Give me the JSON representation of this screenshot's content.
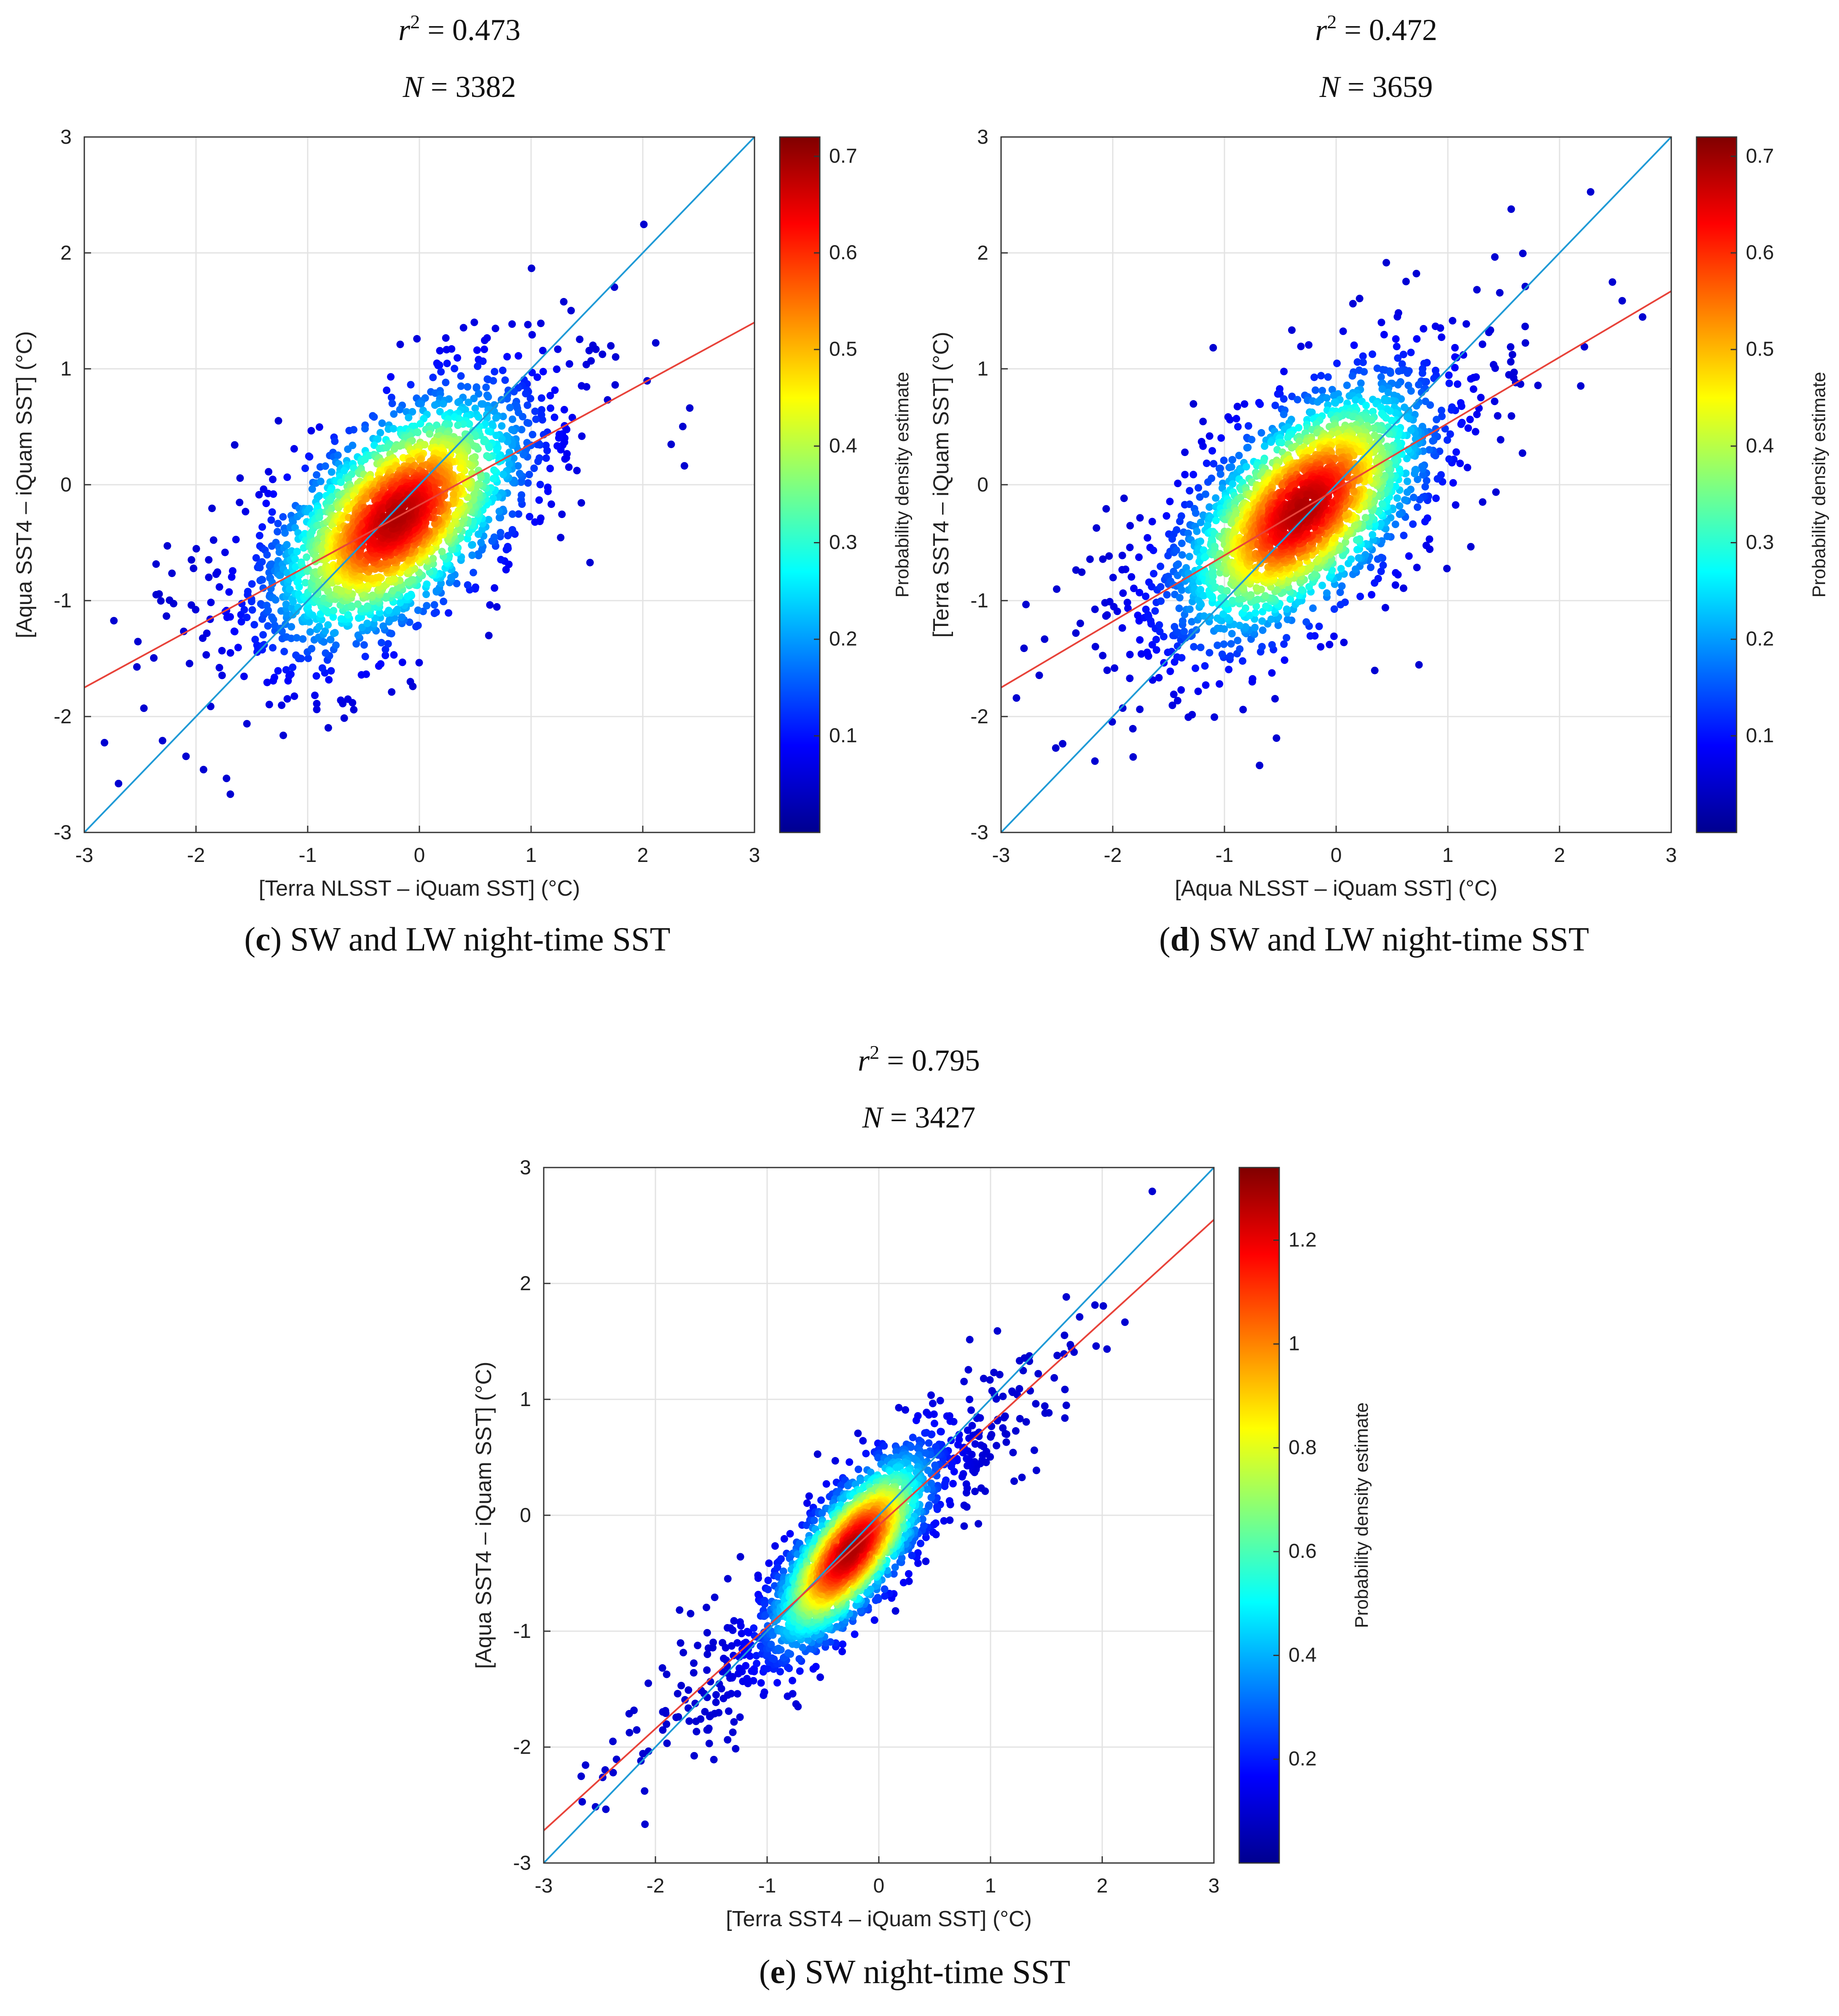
{
  "colors": {
    "reference_line": "#1f9ad6",
    "regression_line": "#e8433a",
    "grid": "#e3e3e3",
    "axis": "#333333"
  },
  "chart_data": [
    {
      "id": "c",
      "type": "scatter",
      "density_colored": true,
      "stats": {
        "r2_label": "r",
        "r2_value": "0.473",
        "n_label": "N",
        "n_value": "3382"
      },
      "caption": {
        "letter": "c",
        "text": " SW and LW night-time SST"
      },
      "xlabel": "[Terra NLSST – iQuam SST] (°C)",
      "ylabel": "[Aqua SST4 – iQuam SST] (°C)",
      "xlim": [
        -3,
        3
      ],
      "ylim": [
        -3,
        3
      ],
      "xticks": [
        "-3",
        "-2",
        "-1",
        "0",
        "1",
        "2",
        "3"
      ],
      "yticks": [
        "-3",
        "-2",
        "-1",
        "0",
        "1",
        "2",
        "3"
      ],
      "grid": true,
      "reference_line": {
        "x": [
          -3,
          3
        ],
        "y": [
          -3,
          3
        ]
      },
      "regression_line": {
        "x": [
          -3,
          3
        ],
        "y": [
          -1.75,
          1.4
        ]
      },
      "colorbar": {
        "label": "Probability density estimate",
        "min": 0,
        "max": 0.72,
        "ticks": [
          "0.1",
          "0.2",
          "0.3",
          "0.4",
          "0.5",
          "0.6",
          "0.7"
        ]
      },
      "cluster": {
        "center_x": -0.2,
        "center_y": -0.2,
        "peak_density": 0.7
      }
    },
    {
      "id": "d",
      "type": "scatter",
      "density_colored": true,
      "stats": {
        "r2_label": "r",
        "r2_value": "0.472",
        "n_label": "N",
        "n_value": "3659"
      },
      "caption": {
        "letter": "d",
        "text": " SW and LW night-time SST"
      },
      "xlabel": "[Aqua NLSST – iQuam SST] (°C)",
      "ylabel": "[Terra SST4 – iQuam SST] (°C)",
      "xlim": [
        -3,
        3
      ],
      "ylim": [
        -3,
        3
      ],
      "xticks": [
        "-3",
        "-2",
        "-1",
        "0",
        "1",
        "2",
        "3"
      ],
      "yticks": [
        "-3",
        "-2",
        "-1",
        "0",
        "1",
        "2",
        "3"
      ],
      "grid": true,
      "reference_line": {
        "x": [
          -3,
          3
        ],
        "y": [
          -3,
          3
        ]
      },
      "regression_line": {
        "x": [
          -3,
          3
        ],
        "y": [
          -1.75,
          1.67
        ]
      },
      "colorbar": {
        "label": "Probability density estimate",
        "min": 0,
        "max": 0.72,
        "ticks": [
          "0.1",
          "0.2",
          "0.3",
          "0.4",
          "0.5",
          "0.6",
          "0.7"
        ]
      },
      "cluster": {
        "center_x": -0.3,
        "center_y": -0.15,
        "peak_density": 0.7
      }
    },
    {
      "id": "e",
      "type": "scatter",
      "density_colored": true,
      "stats": {
        "r2_label": "r",
        "r2_value": "0.795",
        "n_label": "N",
        "n_value": "3427"
      },
      "caption": {
        "letter": "e",
        "text": " SW night-time SST"
      },
      "xlabel": "[Terra SST4 – iQuam SST] (°C)",
      "ylabel": "[Aqua SST4 – iQuam SST] (°C)",
      "xlim": [
        -3,
        3
      ],
      "ylim": [
        -3,
        3
      ],
      "xticks": [
        "-3",
        "-2",
        "-1",
        "0",
        "1",
        "2",
        "3"
      ],
      "yticks": [
        "-3",
        "-2",
        "-1",
        "0",
        "1",
        "2",
        "3"
      ],
      "grid": true,
      "reference_line": {
        "x": [
          -3,
          3
        ],
        "y": [
          -3,
          3
        ]
      },
      "regression_line": {
        "x": [
          -3,
          3
        ],
        "y": [
          -2.72,
          2.55
        ]
      },
      "colorbar": {
        "label": "Probability density estimate",
        "min": 0,
        "max": 1.34,
        "ticks": [
          "0.2",
          "0.4",
          "0.6",
          "0.8",
          "1",
          "1.2"
        ]
      },
      "cluster": {
        "center_x": -0.25,
        "center_y": -0.2,
        "peak_density": 1.3
      }
    }
  ]
}
